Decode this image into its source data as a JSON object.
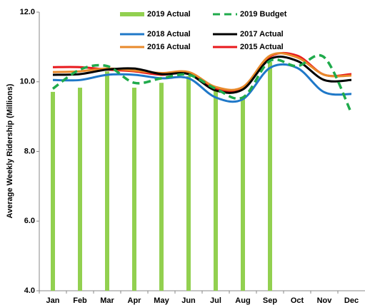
{
  "chart_data": {
    "type": "combo",
    "y_label": "Average Weekly Ridership (Millions)",
    "categories": [
      "Jan",
      "Feb",
      "Mar",
      "Apr",
      "May",
      "Jun",
      "Jul",
      "Aug",
      "Sep",
      "Oct",
      "Nov",
      "Dec"
    ],
    "ylim": [
      4.0,
      12.0
    ],
    "yticks": [
      {
        "value": 4,
        "label": "4.0"
      },
      {
        "value": 6,
        "label": "6.0"
      },
      {
        "value": 8,
        "label": "8.0"
      },
      {
        "value": 10,
        "label": "10.0"
      },
      {
        "value": 12,
        "label": "12.0"
      }
    ],
    "grid": false,
    "legend": "top",
    "series": [
      {
        "name": "2019 Actual",
        "type": "bar",
        "color": "#92d050",
        "values": [
          9.71,
          9.83,
          10.3,
          9.83,
          9.97,
          10.16,
          9.75,
          9.53,
          10.57,
          null,
          null,
          null
        ]
      },
      {
        "name": "2019 Budget",
        "type": "line",
        "dashed": true,
        "color": "#1faa4b",
        "values": [
          9.8,
          10.35,
          10.45,
          9.97,
          10.1,
          10.2,
          9.8,
          9.55,
          10.6,
          10.45,
          10.7,
          9.1
        ]
      },
      {
        "name": "2018 Actual",
        "type": "line",
        "color": "#1f78c8",
        "values": [
          10.05,
          10.05,
          10.2,
          10.2,
          10.1,
          10.1,
          9.55,
          9.5,
          10.4,
          10.4,
          9.7,
          9.65
        ]
      },
      {
        "name": "2017 Actual",
        "type": "line",
        "color": "#000000",
        "values": [
          10.2,
          10.22,
          10.35,
          10.38,
          10.22,
          10.22,
          9.75,
          9.78,
          10.65,
          10.6,
          10.05,
          10.05
        ]
      },
      {
        "name": "2016 Actual",
        "type": "line",
        "color": "#e8892b",
        "values": [
          10.28,
          10.3,
          10.38,
          10.32,
          10.25,
          10.28,
          9.85,
          9.85,
          10.75,
          10.7,
          10.2,
          10.18
        ]
      },
      {
        "name": "2015 Actual",
        "type": "line",
        "color": "#e8181c",
        "values": [
          10.42,
          10.42,
          10.35,
          10.3,
          10.2,
          10.25,
          9.8,
          9.82,
          10.72,
          10.75,
          10.2,
          10.22
        ]
      }
    ]
  }
}
